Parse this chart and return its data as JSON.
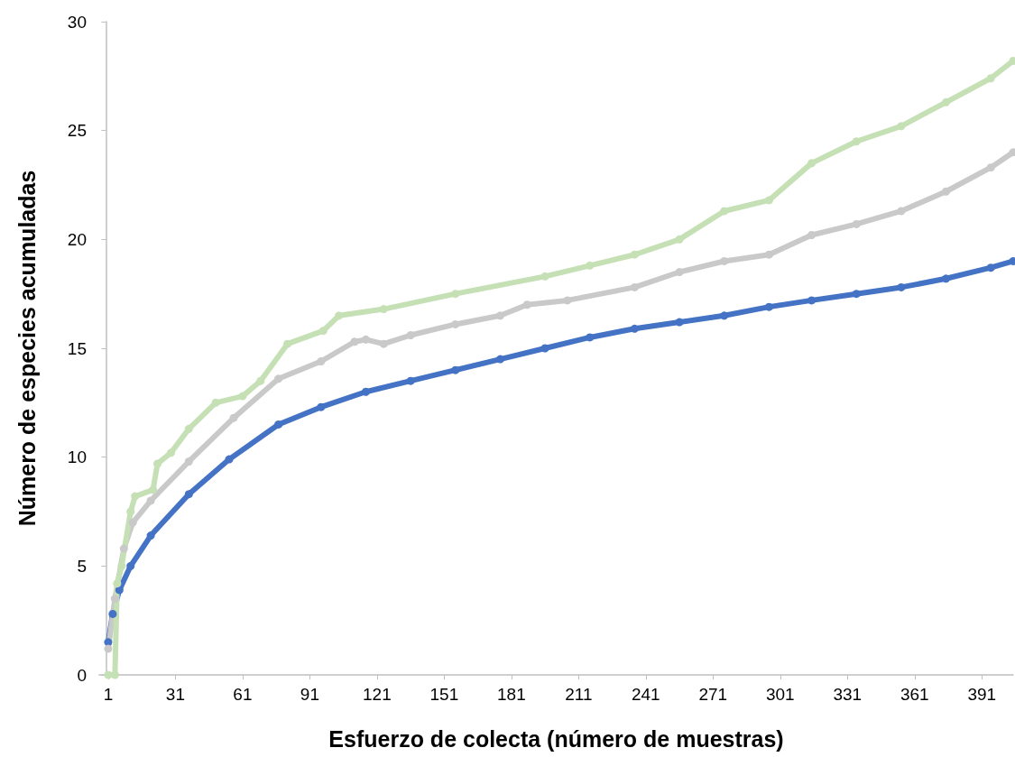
{
  "chart_data": {
    "type": "line",
    "xlabel": "Esfuerzo de colecta (número de muestras)",
    "ylabel": "Número de especies acumuladas",
    "xlim": [
      -3,
      405
    ],
    "xticks": [
      1,
      31,
      61,
      91,
      121,
      151,
      181,
      211,
      241,
      271,
      301,
      331,
      361,
      391
    ],
    "ylim": [
      0,
      30
    ],
    "yticks": [
      0,
      5,
      10,
      15,
      20,
      25,
      30
    ],
    "grid": false,
    "marker": "circle",
    "line_style": "solid",
    "series": [
      {
        "color": "#4472c4",
        "x": [
          1,
          3,
          6,
          11,
          20,
          37,
          55,
          77,
          96,
          116,
          136,
          156,
          176,
          196,
          216,
          236,
          256,
          276,
          296,
          315,
          335,
          355,
          375,
          395,
          405
        ],
        "values": [
          1.5,
          2.8,
          3.9,
          5,
          6.4,
          8.3,
          9.9,
          11.5,
          12.3,
          13,
          13.5,
          14,
          14.5,
          15,
          15.5,
          15.9,
          16.2,
          16.5,
          16.9,
          17.2,
          17.5,
          17.8,
          18.2,
          18.7,
          19
        ]
      },
      {
        "color": "#c9c9c9",
        "x": [
          1,
          4,
          8,
          12,
          20,
          37,
          57,
          77,
          96,
          111,
          116,
          124,
          136,
          156,
          176,
          188,
          206,
          236,
          256,
          276,
          296,
          315,
          335,
          355,
          375,
          395,
          405
        ],
        "values": [
          1.2,
          3.5,
          5.8,
          7,
          8,
          9.8,
          11.8,
          13.6,
          14.4,
          15.3,
          15.4,
          15.2,
          15.6,
          16.1,
          16.5,
          17,
          17.2,
          17.8,
          18.5,
          19,
          19.3,
          20.2,
          20.7,
          21.3,
          22.2,
          23.3,
          24
        ]
      },
      {
        "color": "#c5e0b4",
        "x": [
          1,
          4,
          5,
          7,
          11,
          13,
          21,
          23,
          29,
          37,
          49,
          61,
          69,
          81,
          97,
          104,
          124,
          156,
          196,
          216,
          236,
          256,
          276,
          296,
          315,
          335,
          355,
          375,
          395,
          405
        ],
        "values": [
          0,
          0,
          4.2,
          5,
          7.5,
          8.2,
          8.5,
          9.7,
          10.2,
          11.3,
          12.5,
          12.8,
          13.5,
          15.2,
          15.8,
          16.5,
          16.8,
          17.5,
          18.3,
          18.8,
          19.3,
          20,
          21.3,
          21.8,
          23.5,
          24.5,
          25.2,
          26.3,
          27.4,
          28.2
        ]
      }
    ]
  }
}
